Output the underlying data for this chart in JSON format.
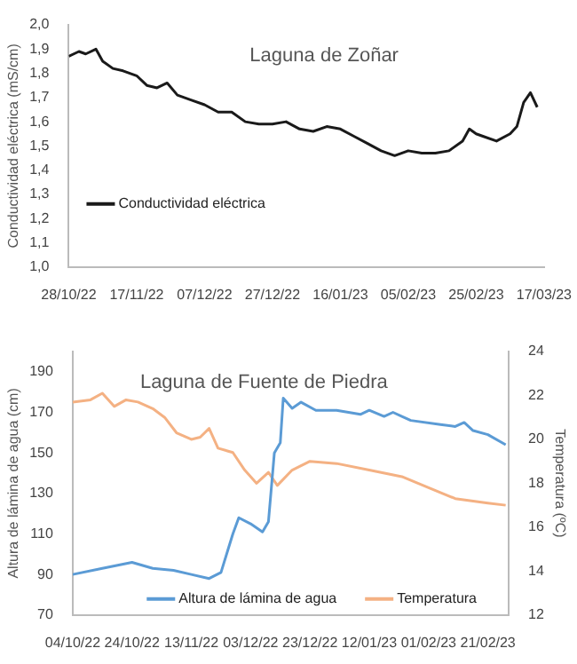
{
  "chart_data": [
    {
      "type": "line",
      "title": "Laguna de Zoñar",
      "ylabel": "Conductividad eléctrica (mS/cm)",
      "x": [
        "2022-10-28",
        "2022-10-31",
        "2022-11-02",
        "2022-11-05",
        "2022-11-07",
        "2022-11-10",
        "2022-11-13",
        "2022-11-17",
        "2022-11-20",
        "2022-11-23",
        "2022-11-26",
        "2022-11-29",
        "2022-12-03",
        "2022-12-07",
        "2022-12-11",
        "2022-12-15",
        "2022-12-19",
        "2022-12-23",
        "2022-12-27",
        "2022-12-31",
        "2023-01-04",
        "2023-01-08",
        "2023-01-12",
        "2023-01-16",
        "2023-01-20",
        "2023-01-24",
        "2023-01-28",
        "2023-02-01",
        "2023-02-05",
        "2023-02-09",
        "2023-02-13",
        "2023-02-17",
        "2023-02-21",
        "2023-02-23",
        "2023-02-25",
        "2023-02-27",
        "2023-03-03",
        "2023-03-07",
        "2023-03-09",
        "2023-03-11",
        "2023-03-13",
        "2023-03-15"
      ],
      "series": [
        {
          "name": "Conductividad eléctrica",
          "color": "#1a1a1a",
          "values": [
            1.87,
            1.89,
            1.88,
            1.9,
            1.85,
            1.82,
            1.81,
            1.79,
            1.75,
            1.74,
            1.76,
            1.71,
            1.69,
            1.67,
            1.64,
            1.64,
            1.6,
            1.59,
            1.59,
            1.6,
            1.57,
            1.56,
            1.58,
            1.57,
            1.54,
            1.51,
            1.48,
            1.46,
            1.48,
            1.47,
            1.47,
            1.48,
            1.52,
            1.57,
            1.55,
            1.54,
            1.52,
            1.55,
            1.58,
            1.68,
            1.72,
            1.66
          ]
        }
      ],
      "xlim": [
        "2022-10-28",
        "2023-03-17"
      ],
      "xticks": [
        {
          "value": "2022-10-28",
          "label": "28/10/22"
        },
        {
          "value": "2022-11-17",
          "label": "17/11/22"
        },
        {
          "value": "2022-12-07",
          "label": "07/12/22"
        },
        {
          "value": "2022-12-27",
          "label": "27/12/22"
        },
        {
          "value": "2023-01-16",
          "label": "16/01/23"
        },
        {
          "value": "2023-02-05",
          "label": "05/02/23"
        },
        {
          "value": "2023-02-25",
          "label": "25/02/23"
        },
        {
          "value": "2023-03-17",
          "label": "17/03/23"
        }
      ],
      "ylim": [
        1.0,
        2.0
      ],
      "yticks": [
        {
          "value": 1.0,
          "label": "1,0"
        },
        {
          "value": 1.1,
          "label": "1,1"
        },
        {
          "value": 1.2,
          "label": "1,2"
        },
        {
          "value": 1.3,
          "label": "1,3"
        },
        {
          "value": 1.4,
          "label": "1,4"
        },
        {
          "value": 1.5,
          "label": "1,5"
        },
        {
          "value": 1.6,
          "label": "1,6"
        },
        {
          "value": 1.7,
          "label": "1,7"
        },
        {
          "value": 1.8,
          "label": "1,8"
        },
        {
          "value": 1.9,
          "label": "1,9"
        },
        {
          "value": 2.0,
          "label": "2,0"
        }
      ],
      "grid": false,
      "legend": "left"
    },
    {
      "type": "line",
      "title": "Laguna de Fuente de Piedra",
      "ylabel": "Altura de lámina de agua (cm)",
      "y2label": "Temperatura (ºC)",
      "series": [
        {
          "name": "Altura de lámina de agua",
          "color": "#5b9bd5",
          "x": [
            "2022-10-04",
            "2022-10-14",
            "2022-10-24",
            "2022-10-31",
            "2022-11-07",
            "2022-11-13",
            "2022-11-19",
            "2022-11-23",
            "2022-11-27",
            "2022-11-29",
            "2022-12-03",
            "2022-12-07",
            "2022-12-09",
            "2022-12-11",
            "2022-12-13",
            "2022-12-14",
            "2022-12-17",
            "2022-12-20",
            "2022-12-25",
            "2023-01-01",
            "2023-01-09",
            "2023-01-12",
            "2023-01-17",
            "2023-01-20",
            "2023-01-23",
            "2023-01-26",
            "2023-02-05",
            "2023-02-10",
            "2023-02-13",
            "2023-02-16",
            "2023-02-21",
            "2023-02-27"
          ],
          "values": [
            90,
            93,
            96,
            93,
            92,
            90,
            88,
            91,
            110,
            118,
            115,
            111,
            116,
            150,
            155,
            177,
            172,
            175,
            171,
            171,
            169,
            171,
            168,
            170,
            168,
            166,
            164,
            163,
            165,
            161,
            159,
            154
          ]
        },
        {
          "name": "Temperatura",
          "color": "#f4b183",
          "axis": "y2",
          "x": [
            "2022-10-04",
            "2022-10-10",
            "2022-10-14",
            "2022-10-18",
            "2022-10-22",
            "2022-10-26",
            "2022-10-31",
            "2022-11-04",
            "2022-11-08",
            "2022-11-13",
            "2022-11-16",
            "2022-11-19",
            "2022-11-22",
            "2022-11-27",
            "2022-12-01",
            "2022-12-05",
            "2022-12-09",
            "2022-12-12",
            "2022-12-17",
            "2022-12-23",
            "2023-01-01",
            "2023-01-12",
            "2023-01-23",
            "2023-02-01",
            "2023-02-10",
            "2023-02-21",
            "2023-02-27"
          ],
          "values": [
            21.7,
            21.8,
            22.1,
            21.5,
            21.8,
            21.7,
            21.4,
            21.0,
            20.3,
            20.0,
            20.1,
            20.5,
            19.6,
            19.4,
            18.6,
            18.0,
            18.5,
            17.9,
            18.6,
            19.0,
            18.9,
            18.6,
            18.3,
            17.8,
            17.3,
            17.1,
            17.0
          ]
        }
      ],
      "xlim": [
        "2022-10-04",
        "2023-02-28"
      ],
      "xticks": [
        {
          "value": "2022-10-04",
          "label": "04/10/22"
        },
        {
          "value": "2022-10-24",
          "label": "24/10/22"
        },
        {
          "value": "2022-11-13",
          "label": "13/11/22"
        },
        {
          "value": "2022-12-03",
          "label": "03/12/22"
        },
        {
          "value": "2022-12-23",
          "label": "23/12/22"
        },
        {
          "value": "2023-01-12",
          "label": "12/01/23"
        },
        {
          "value": "2023-02-01",
          "label": "01/02/23"
        },
        {
          "value": "2023-02-21",
          "label": "21/02/23"
        }
      ],
      "ylim": [
        70,
        200
      ],
      "yticks": [
        70,
        90,
        110,
        130,
        150,
        170,
        190
      ],
      "y2lim": [
        12,
        24
      ],
      "y2ticks": [
        12,
        14,
        16,
        18,
        20,
        22,
        24
      ],
      "grid": false,
      "legend": "bottom right"
    }
  ]
}
